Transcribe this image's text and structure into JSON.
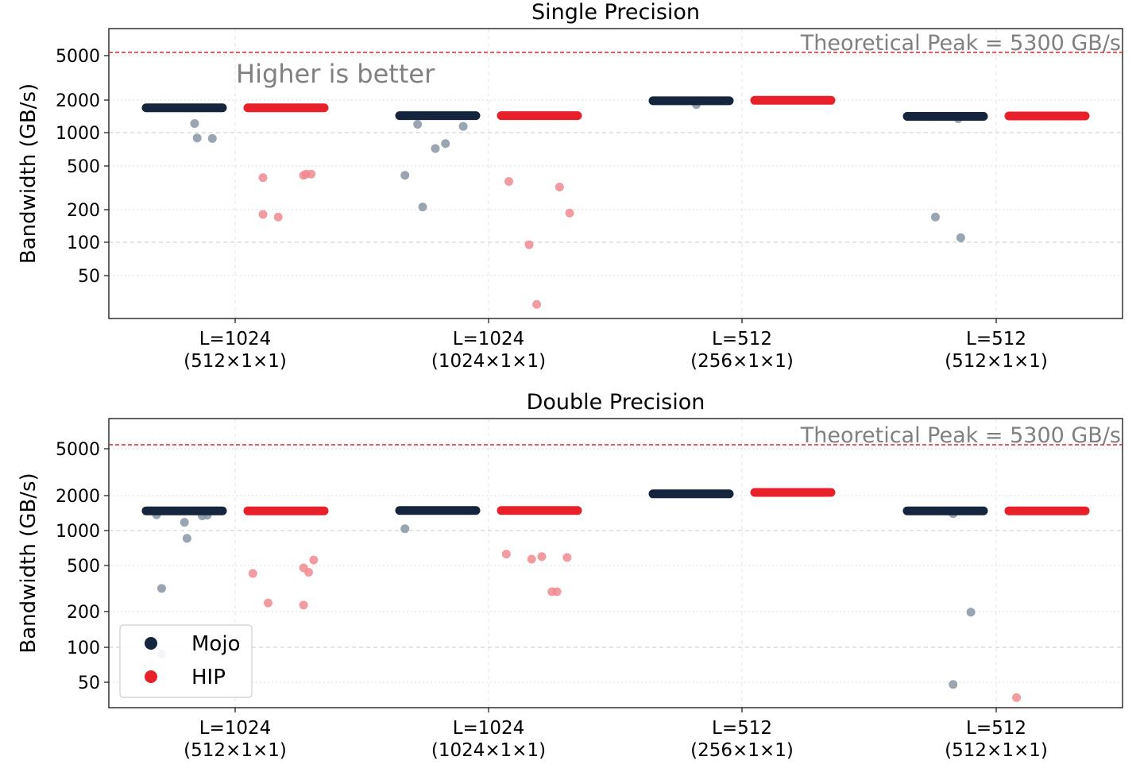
{
  "chart_data": [
    {
      "type": "scatter",
      "subtype": "strip",
      "title": "Single Precision",
      "ylabel": "Bandwidth (GB/s)",
      "yscale": "log",
      "ylim": [
        18,
        8000
      ],
      "yticks": [
        50,
        100,
        200,
        500,
        1000,
        2000,
        5000
      ],
      "ytick_labels": [
        "50",
        "100",
        "200",
        "500",
        "1000",
        "2000",
        "5000"
      ],
      "categories": [
        {
          "line1": "L=1024",
          "line2": "(512×1×1)"
        },
        {
          "line1": "L=1024",
          "line2": "(1024×1×1)"
        },
        {
          "line1": "L=512",
          "line2": "(256×1×1)"
        },
        {
          "line1": "L=512",
          "line2": "(512×1×1)"
        }
      ],
      "reference_line": {
        "value": 5300,
        "label": "Theoretical Peak = 5300 GB/s",
        "color": "#e8202a"
      },
      "annotation": "Higher is better",
      "series": [
        {
          "name": "Mojo",
          "color": "#14253d",
          "median": [
            1700,
            1440,
            1970,
            1420
          ],
          "outliers": [
            [
              {
                "offset": -0.16,
                "value": 1220
              },
              {
                "offset": -0.15,
                "value": 900
              },
              {
                "offset": -0.09,
                "value": 890
              }
            ],
            [
              {
                "offset": -0.33,
                "value": 410
              },
              {
                "offset": -0.28,
                "value": 1200
              },
              {
                "offset": -0.26,
                "value": 210
              },
              {
                "offset": -0.21,
                "value": 720
              },
              {
                "offset": -0.17,
                "value": 800
              },
              {
                "offset": -0.1,
                "value": 1150
              }
            ],
            [
              {
                "offset": -0.18,
                "value": 1820
              }
            ],
            [
              {
                "offset": -0.24,
                "value": 170
              },
              {
                "offset": -0.14,
                "value": 110
              },
              {
                "offset": -0.15,
                "value": 1350
              }
            ]
          ]
        },
        {
          "name": "HIP",
          "color": "#e8202a",
          "median": [
            1700,
            1440,
            1990,
            1430
          ],
          "outliers": [
            [
              {
                "offset": 0.11,
                "value": 180
              },
              {
                "offset": 0.11,
                "value": 390
              },
              {
                "offset": 0.17,
                "value": 170
              },
              {
                "offset": 0.27,
                "value": 410
              },
              {
                "offset": 0.28,
                "value": 420
              },
              {
                "offset": 0.3,
                "value": 420
              }
            ],
            [
              {
                "offset": 0.08,
                "value": 360
              },
              {
                "offset": 0.16,
                "value": 95
              },
              {
                "offset": 0.19,
                "value": 27
              },
              {
                "offset": 0.28,
                "value": 320
              },
              {
                "offset": 0.32,
                "value": 185
              }
            ]
          ]
        }
      ],
      "legend": null
    },
    {
      "type": "scatter",
      "subtype": "strip",
      "title": "Double Precision",
      "ylabel": "Bandwidth (GB/s)",
      "yscale": "log",
      "ylim": [
        30,
        8000
      ],
      "yticks": [
        50,
        100,
        200,
        500,
        1000,
        2000,
        5000
      ],
      "ytick_labels": [
        "50",
        "100",
        "200",
        "500",
        "1000",
        "2000",
        "5000"
      ],
      "categories": [
        {
          "line1": "L=1024",
          "line2": "(512×1×1)"
        },
        {
          "line1": "L=1024",
          "line2": "(1024×1×1)"
        },
        {
          "line1": "L=512",
          "line2": "(256×1×1)"
        },
        {
          "line1": "L=512",
          "line2": "(512×1×1)"
        }
      ],
      "reference_line": {
        "value": 5300,
        "label": "Theoretical Peak = 5300 GB/s",
        "color": "#e8202a"
      },
      "series": [
        {
          "name": "Mojo",
          "color": "#14253d",
          "median": [
            1480,
            1490,
            2070,
            1480
          ],
          "outliers": [
            [
              {
                "offset": -0.31,
                "value": 1370
              },
              {
                "offset": -0.29,
                "value": 320
              },
              {
                "offset": -0.29,
                "value": 88
              },
              {
                "offset": -0.2,
                "value": 1180
              },
              {
                "offset": -0.19,
                "value": 860
              },
              {
                "offset": -0.13,
                "value": 1340
              },
              {
                "offset": -0.11,
                "value": 1360
              }
            ],
            [
              {
                "offset": -0.33,
                "value": 1040
              }
            ],
            [],
            [
              {
                "offset": -0.17,
                "value": 48
              },
              {
                "offset": -0.1,
                "value": 200
              },
              {
                "offset": -0.17,
                "value": 1400
              }
            ]
          ]
        },
        {
          "name": "HIP",
          "color": "#e8202a",
          "median": [
            1480,
            1490,
            2130,
            1480
          ],
          "outliers": [
            [
              {
                "offset": 0.07,
                "value": 430
              },
              {
                "offset": 0.13,
                "value": 240
              },
              {
                "offset": 0.27,
                "value": 480
              },
              {
                "offset": 0.27,
                "value": 230
              },
              {
                "offset": 0.29,
                "value": 440
              },
              {
                "offset": 0.31,
                "value": 560
              }
            ],
            [
              {
                "offset": 0.07,
                "value": 630
              },
              {
                "offset": 0.17,
                "value": 570
              },
              {
                "offset": 0.21,
                "value": 600
              },
              {
                "offset": 0.25,
                "value": 300
              },
              {
                "offset": 0.27,
                "value": 300
              },
              {
                "offset": 0.31,
                "value": 590
              }
            ],
            [],
            [
              {
                "offset": 0.08,
                "value": 37
              }
            ]
          ]
        }
      ],
      "legend": {
        "location": "lower-left",
        "entries": [
          "Mojo",
          "HIP"
        ]
      }
    }
  ]
}
